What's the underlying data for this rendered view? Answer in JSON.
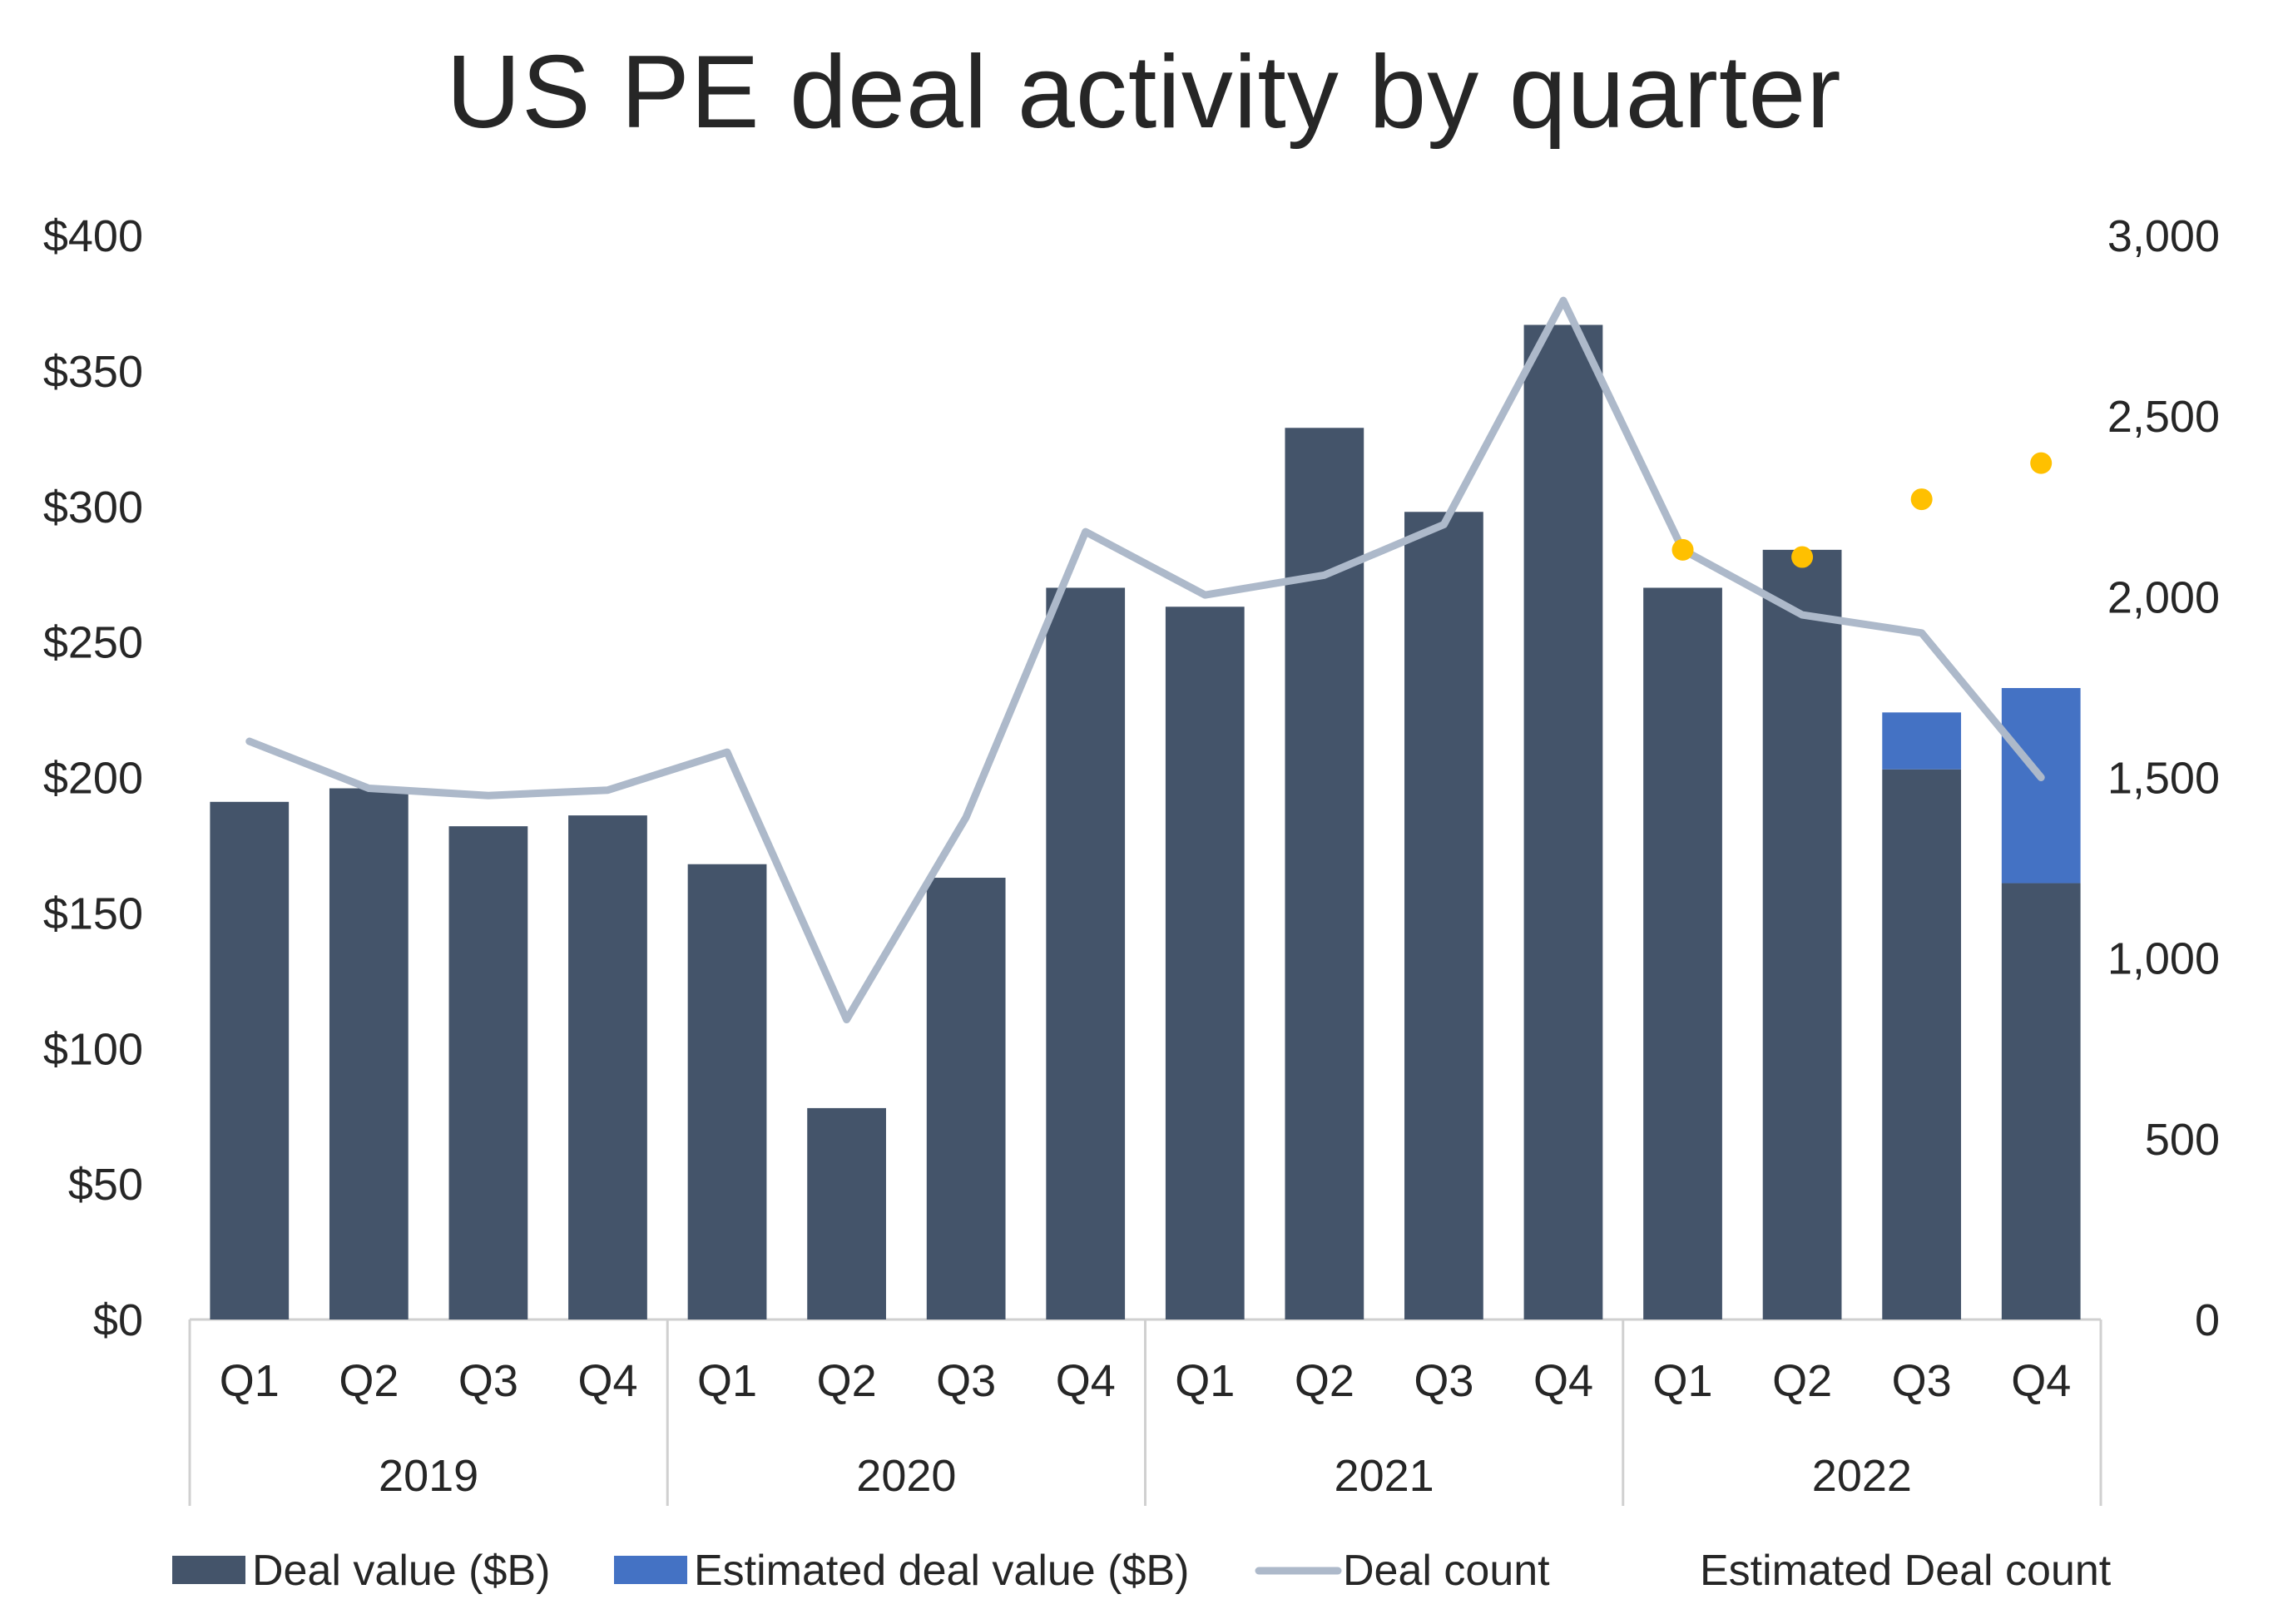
{
  "chart_data": {
    "type": "bar",
    "title": "US PE deal activity by quarter",
    "categories": [
      "Q1",
      "Q2",
      "Q3",
      "Q4",
      "Q1",
      "Q2",
      "Q3",
      "Q4",
      "Q1",
      "Q2",
      "Q3",
      "Q4",
      "Q1",
      "Q2",
      "Q3",
      "Q4"
    ],
    "groups": [
      {
        "label": "2019",
        "count": 4
      },
      {
        "label": "2020",
        "count": 4
      },
      {
        "label": "2021",
        "count": 4
      },
      {
        "label": "2022",
        "count": 4
      }
    ],
    "y_left": {
      "range": [
        0,
        400
      ],
      "ticks": [
        0,
        50,
        100,
        150,
        200,
        250,
        300,
        350,
        400
      ],
      "tick_labels": [
        "$0",
        "$50",
        "$100",
        "$150",
        "$200",
        "$250",
        "$300",
        "$350",
        "$400"
      ]
    },
    "y_right": {
      "range": [
        0,
        3000
      ],
      "ticks": [
        0,
        500,
        1000,
        1500,
        2000,
        2500,
        3000
      ],
      "tick_labels": [
        "0",
        "500",
        "1,000",
        "1,500",
        "2,000",
        "2,500",
        "3,000"
      ]
    },
    "grid": false,
    "legend_position": "bottom",
    "series": [
      {
        "name": "Deal value ($B)",
        "type": "bar",
        "axis": "left",
        "color": "#44546a",
        "values": [
          191,
          196,
          182,
          186,
          168,
          78,
          163,
          270,
          263,
          329,
          298,
          367,
          270,
          284,
          203,
          161
        ]
      },
      {
        "name": "Estimated deal value ($B)",
        "type": "bar-stacked",
        "axis": "left",
        "color": "#4472c4",
        "values": [
          null,
          null,
          null,
          null,
          null,
          null,
          null,
          null,
          null,
          null,
          null,
          null,
          null,
          null,
          21,
          72
        ]
      },
      {
        "name": "Deal count",
        "type": "line",
        "axis": "right",
        "color": "#adb9ca",
        "values": [
          1600,
          1470,
          1450,
          1465,
          1570,
          830,
          1390,
          2180,
          2005,
          2060,
          2200,
          2820,
          2130,
          1950,
          1900,
          1500
        ]
      },
      {
        "name": "Estimated Deal count",
        "type": "scatter",
        "axis": "right",
        "color": "#ffc000",
        "values": [
          null,
          null,
          null,
          null,
          null,
          null,
          null,
          null,
          null,
          null,
          null,
          null,
          2130,
          2110,
          2270,
          2370
        ]
      }
    ]
  }
}
